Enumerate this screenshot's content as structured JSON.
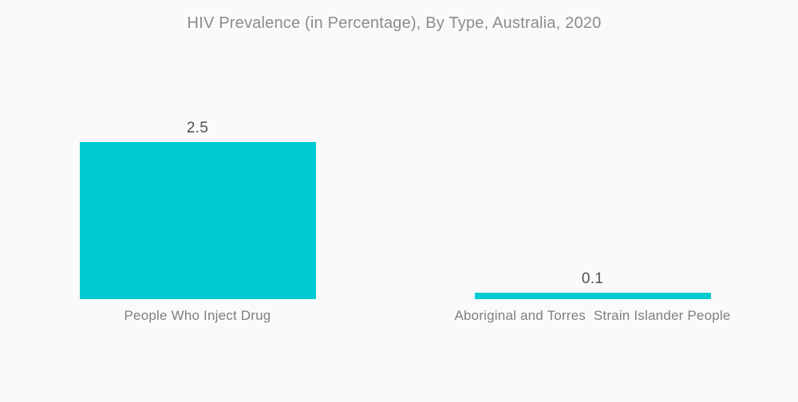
{
  "chart_data": {
    "type": "bar",
    "title": "HIV Prevalence (in Percentage), By Type, Australia, 2020",
    "categories": [
      "People Who Inject Drug",
      "Aboriginal and Torres  Strain Islander People"
    ],
    "values": [
      2.5,
      0.1
    ],
    "value_labels": [
      "2.5",
      "0.1"
    ],
    "xlabel": "",
    "ylabel": "",
    "ylim": [
      0,
      2.5
    ],
    "grid": false,
    "legend": false,
    "orientation": "vertical"
  },
  "colors": {
    "bar": "#00CBD2",
    "title_text": "#8c8c8c",
    "value_text": "#4f4f4f",
    "category_text": "#7f7f7f",
    "background": "#fafafa"
  }
}
